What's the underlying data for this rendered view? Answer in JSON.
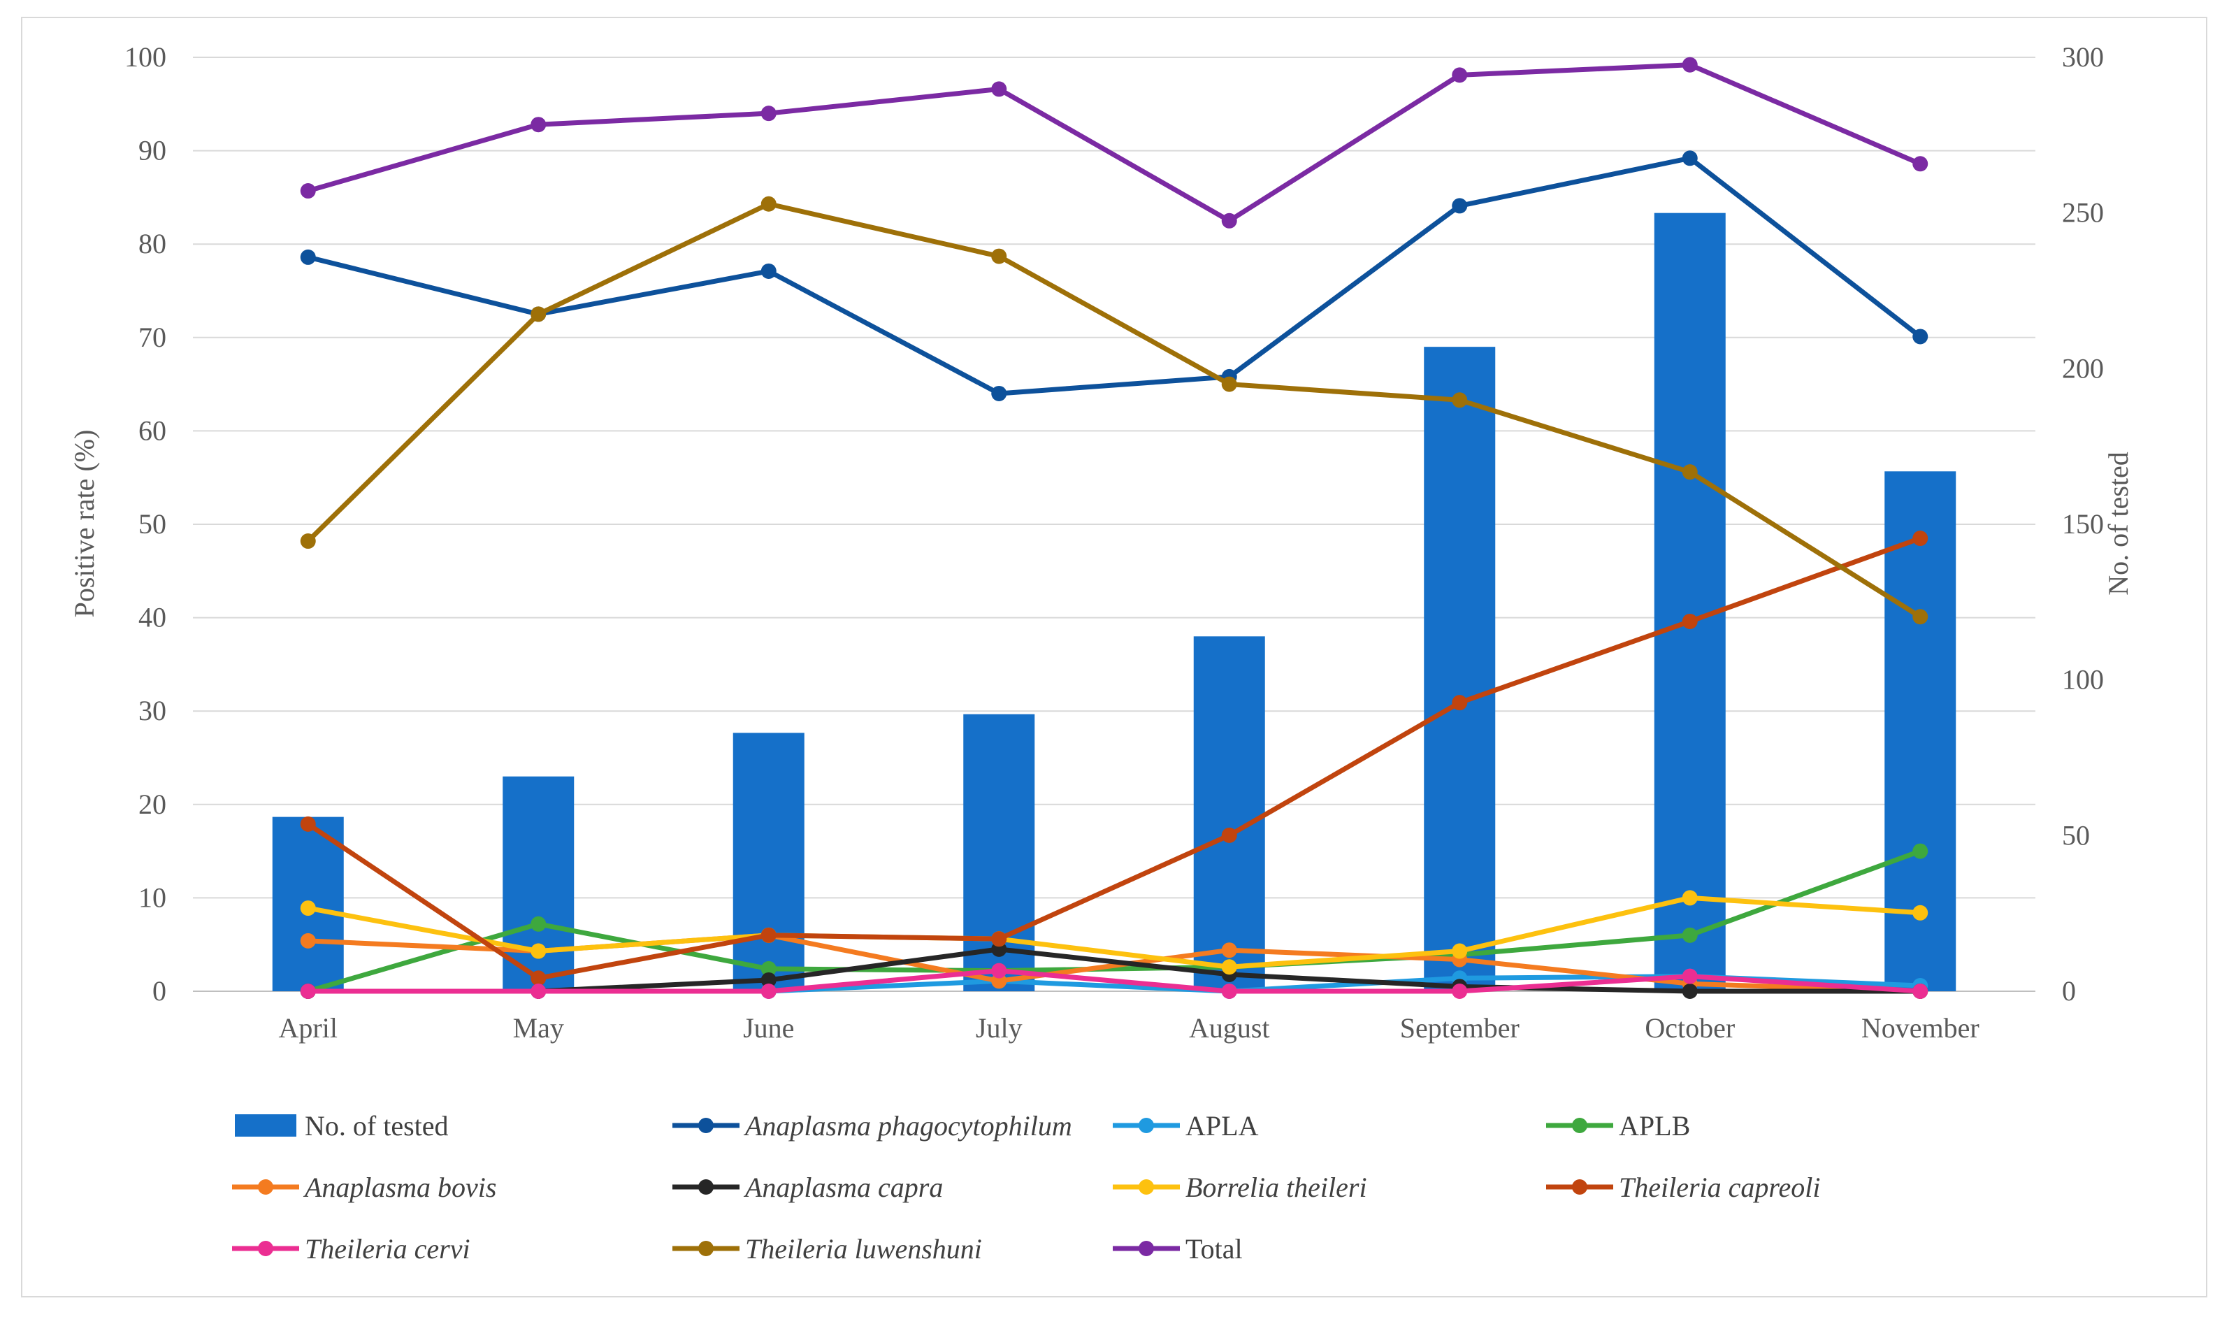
{
  "chart_data": {
    "type": "bar+line",
    "categories": [
      "April",
      "May",
      "June",
      "July",
      "August",
      "September",
      "October",
      "November"
    ],
    "y_left": {
      "label": "Positive rate (%)",
      "lim": [
        0,
        100
      ],
      "ticks": [
        0,
        10,
        20,
        30,
        40,
        50,
        60,
        70,
        80,
        90,
        100
      ]
    },
    "y_right": {
      "label": "No. of tested",
      "lim": [
        0,
        300
      ],
      "ticks": [
        0,
        50,
        100,
        150,
        200,
        250,
        300
      ]
    },
    "grid": true,
    "legend_position": "bottom",
    "bars": {
      "name": "No. of tested",
      "axis": "right",
      "color": "#1570c9",
      "values": [
        56,
        69,
        83,
        89,
        114,
        207,
        250,
        167
      ]
    },
    "series": [
      {
        "name": "Anaplasma phagocytophilum",
        "italic": true,
        "color": "#0d519b",
        "values": [
          78.6,
          72.5,
          77.1,
          64.0,
          65.8,
          84.1,
          89.2,
          70.1
        ]
      },
      {
        "name": "APLA",
        "italic": false,
        "color": "#1f9ae0",
        "values": [
          0,
          0,
          0,
          1.1,
          0,
          1.4,
          1.6,
          0.6
        ]
      },
      {
        "name": "APLB",
        "italic": false,
        "color": "#3ea83e",
        "values": [
          0,
          7.2,
          2.4,
          2.2,
          2.6,
          3.9,
          6.0,
          15.0
        ]
      },
      {
        "name": "Anaplasma bovis",
        "italic": true,
        "color": "#f47b20",
        "values": [
          5.4,
          4.3,
          6.0,
          1.1,
          4.4,
          3.4,
          0.8,
          0
        ]
      },
      {
        "name": "Anaplasma capra",
        "italic": true,
        "color": "#262626",
        "values": [
          0,
          0,
          1.2,
          4.5,
          1.8,
          0.5,
          0,
          0
        ]
      },
      {
        "name": "Borrelia theileri",
        "italic": true,
        "color": "#fdc10f",
        "values": [
          8.9,
          4.3,
          6.0,
          5.6,
          2.6,
          4.3,
          10.0,
          8.4
        ]
      },
      {
        "name": "Theileria capreoli",
        "italic": true,
        "color": "#c1440e",
        "values": [
          17.9,
          1.4,
          6.0,
          5.6,
          16.7,
          30.9,
          39.6,
          48.5
        ]
      },
      {
        "name": "Theileria cervi",
        "italic": true,
        "color": "#eb2e92",
        "values": [
          0,
          0,
          0,
          2.2,
          0,
          0,
          1.6,
          0
        ]
      },
      {
        "name": "Theileria luwenshuni",
        "italic": true,
        "color": "#9e7008",
        "values": [
          48.2,
          72.5,
          84.3,
          78.7,
          65.0,
          63.3,
          55.6,
          40.1
        ]
      },
      {
        "name": "Total",
        "italic": false,
        "color": "#7b2aa3",
        "values": [
          85.7,
          92.8,
          94.0,
          96.6,
          82.5,
          98.1,
          99.2,
          88.6
        ]
      }
    ]
  }
}
